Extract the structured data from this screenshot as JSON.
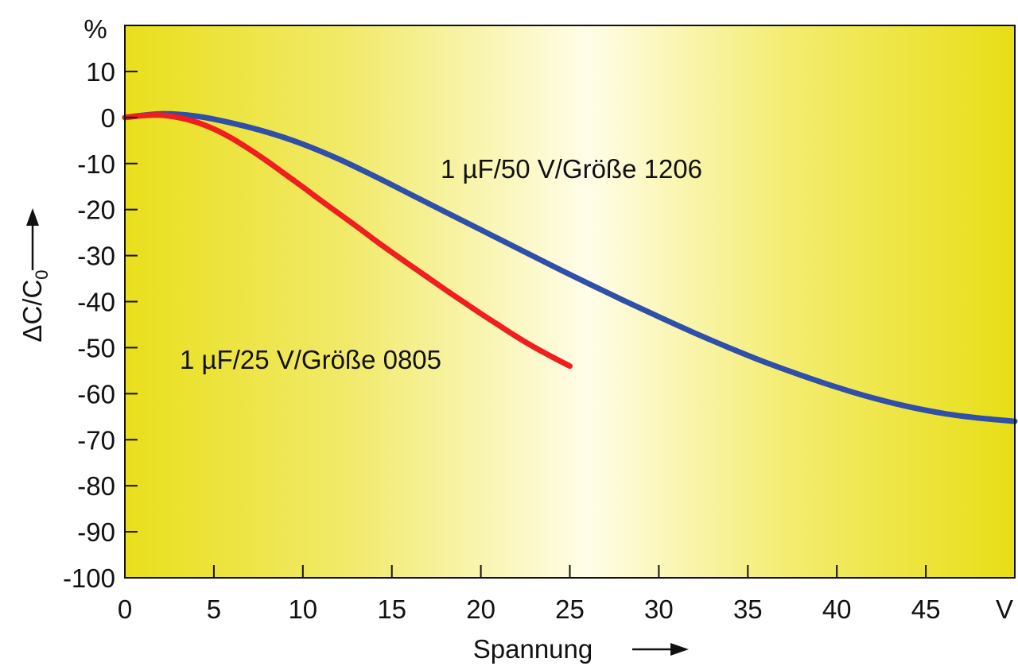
{
  "chart_data": {
    "type": "line",
    "title": "",
    "xlabel": "Spannung",
    "ylabel": "ΔC/C",
    "ylabel_subscript": "0",
    "x_unit": "V",
    "y_unit": "%",
    "xlim": [
      0,
      50
    ],
    "ylim": [
      -100,
      20
    ],
    "x_ticks": [
      0,
      5,
      10,
      15,
      20,
      25,
      30,
      35,
      40,
      45
    ],
    "y_ticks": [
      10,
      0,
      -10,
      -20,
      -30,
      -40,
      -50,
      -60,
      -70,
      -80,
      -90,
      -100
    ],
    "grid": false,
    "series": [
      {
        "name": "1 µF/50 V/Größe 1206",
        "color": "#2f4fa8",
        "x": [
          0,
          2,
          4,
          6,
          8,
          10,
          12,
          14,
          16,
          18,
          20,
          22,
          24,
          26,
          28,
          30,
          32,
          34,
          36,
          38,
          40,
          42,
          44,
          46,
          48,
          50
        ],
        "y": [
          0,
          0.8,
          0.3,
          -1.2,
          -3.2,
          -5.8,
          -9,
          -12.7,
          -16.6,
          -20.5,
          -24.4,
          -28.3,
          -32.2,
          -36,
          -39.7,
          -43.3,
          -46.8,
          -50.1,
          -53.2,
          -56,
          -58.6,
          -60.9,
          -62.8,
          -64.3,
          -65.3,
          -66
        ]
      },
      {
        "name": "1 µF/25 V/Größe 0805",
        "color": "#f01e1e",
        "x": [
          0,
          1,
          2,
          3,
          4,
          5,
          6,
          7,
          8,
          9,
          10,
          11,
          12,
          13,
          14,
          15,
          16,
          17,
          18,
          19,
          20,
          21,
          22,
          23,
          24,
          25
        ],
        "y": [
          0,
          0.4,
          0.5,
          0,
          -1,
          -2.5,
          -4.5,
          -6.9,
          -9.5,
          -12.3,
          -15.1,
          -18,
          -20.8,
          -23.6,
          -26.5,
          -29.3,
          -32,
          -34.7,
          -37.4,
          -40,
          -42.6,
          -45.1,
          -47.6,
          -49.9,
          -52,
          -54
        ]
      }
    ],
    "annotations": [
      {
        "text": "1 µF/50 V/Größe 1206",
        "series": "1 µF/50 V/Größe 1206"
      },
      {
        "text": "1 µF/25 V/Größe 0805",
        "series": "1 µF/25 V/Größe 0805"
      }
    ]
  }
}
